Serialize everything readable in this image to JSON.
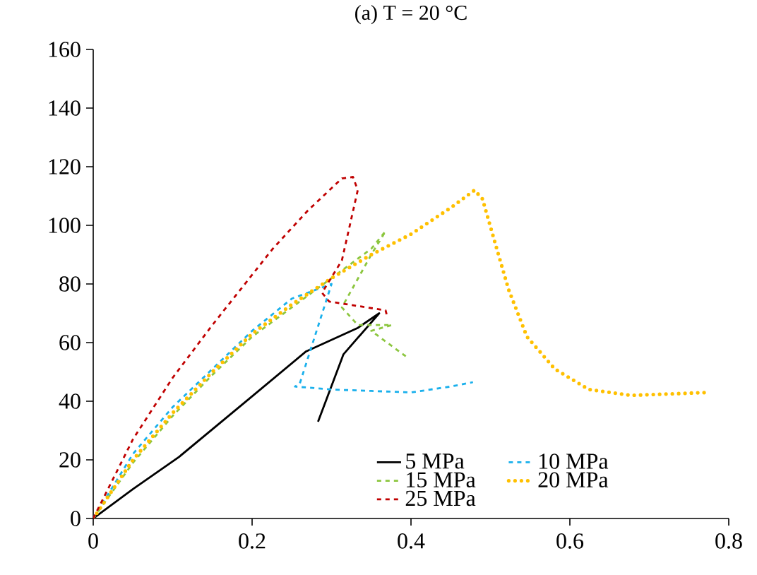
{
  "chart_data": {
    "type": "line",
    "title": "(a) T = 20 °C",
    "xlim": [
      0,
      0.8
    ],
    "xticks": [
      0,
      0.2,
      0.4,
      0.6,
      0.8
    ],
    "ylim": [
      0,
      160
    ],
    "yticks": [
      0,
      20,
      40,
      60,
      80,
      100,
      120,
      140,
      160
    ],
    "grid": false,
    "legend": "bottom",
    "marker": "none",
    "series": [
      {
        "name": "5 MPa",
        "color": "#000000",
        "line_style": "solid",
        "x": [
          0,
          0.05,
          0.108,
          0.197,
          0.268,
          0.333,
          0.36,
          0.315,
          0.283
        ],
        "values": [
          0,
          10,
          21,
          41,
          57,
          65,
          70,
          56,
          33
        ]
      },
      {
        "name": "10 MPa",
        "color": "#1ab0ec",
        "line_style": "dashed",
        "x": [
          0,
          0.05,
          0.1,
          0.15,
          0.2,
          0.25,
          0.3,
          0.26,
          0.254,
          0.3,
          0.35,
          0.4,
          0.45,
          0.478
        ],
        "values": [
          0,
          22,
          38,
          51,
          64,
          75,
          80,
          46,
          45,
          44,
          43.5,
          43,
          45,
          46.5
        ]
      },
      {
        "name": "15 MPa",
        "color": "#8cc63f",
        "line_style": "dashed",
        "x": [
          0,
          0.05,
          0.1,
          0.15,
          0.2,
          0.25,
          0.3,
          0.35,
          0.368,
          0.35,
          0.313,
          0.333,
          0.376,
          0.35,
          0.395
        ],
        "values": [
          0,
          19,
          35,
          49,
          62,
          72,
          82,
          92,
          98,
          90,
          72,
          66,
          66,
          64,
          55
        ]
      },
      {
        "name": "20 MPa",
        "color": "#ffc000",
        "line_style": "dotted",
        "x": [
          0,
          0.05,
          0.1,
          0.15,
          0.2,
          0.25,
          0.3,
          0.35,
          0.4,
          0.45,
          0.48,
          0.49,
          0.508,
          0.523,
          0.546,
          0.581,
          0.624,
          0.677,
          0.775
        ],
        "values": [
          0,
          20,
          36,
          50,
          63,
          73,
          82,
          90,
          97,
          106,
          112,
          109,
          92,
          78,
          62,
          51,
          44,
          42,
          43
        ]
      },
      {
        "name": "25 MPa",
        "color": "#c00000",
        "line_style": "dashed",
        "x": [
          0,
          0.05,
          0.1,
          0.15,
          0.226,
          0.27,
          0.313,
          0.327,
          0.333,
          0.313,
          0.288,
          0.297,
          0.368,
          0.37
        ],
        "values": [
          0,
          27,
          48,
          66,
          92,
          105,
          116,
          116.5,
          112,
          88,
          77,
          74,
          71,
          69
        ]
      }
    ]
  }
}
